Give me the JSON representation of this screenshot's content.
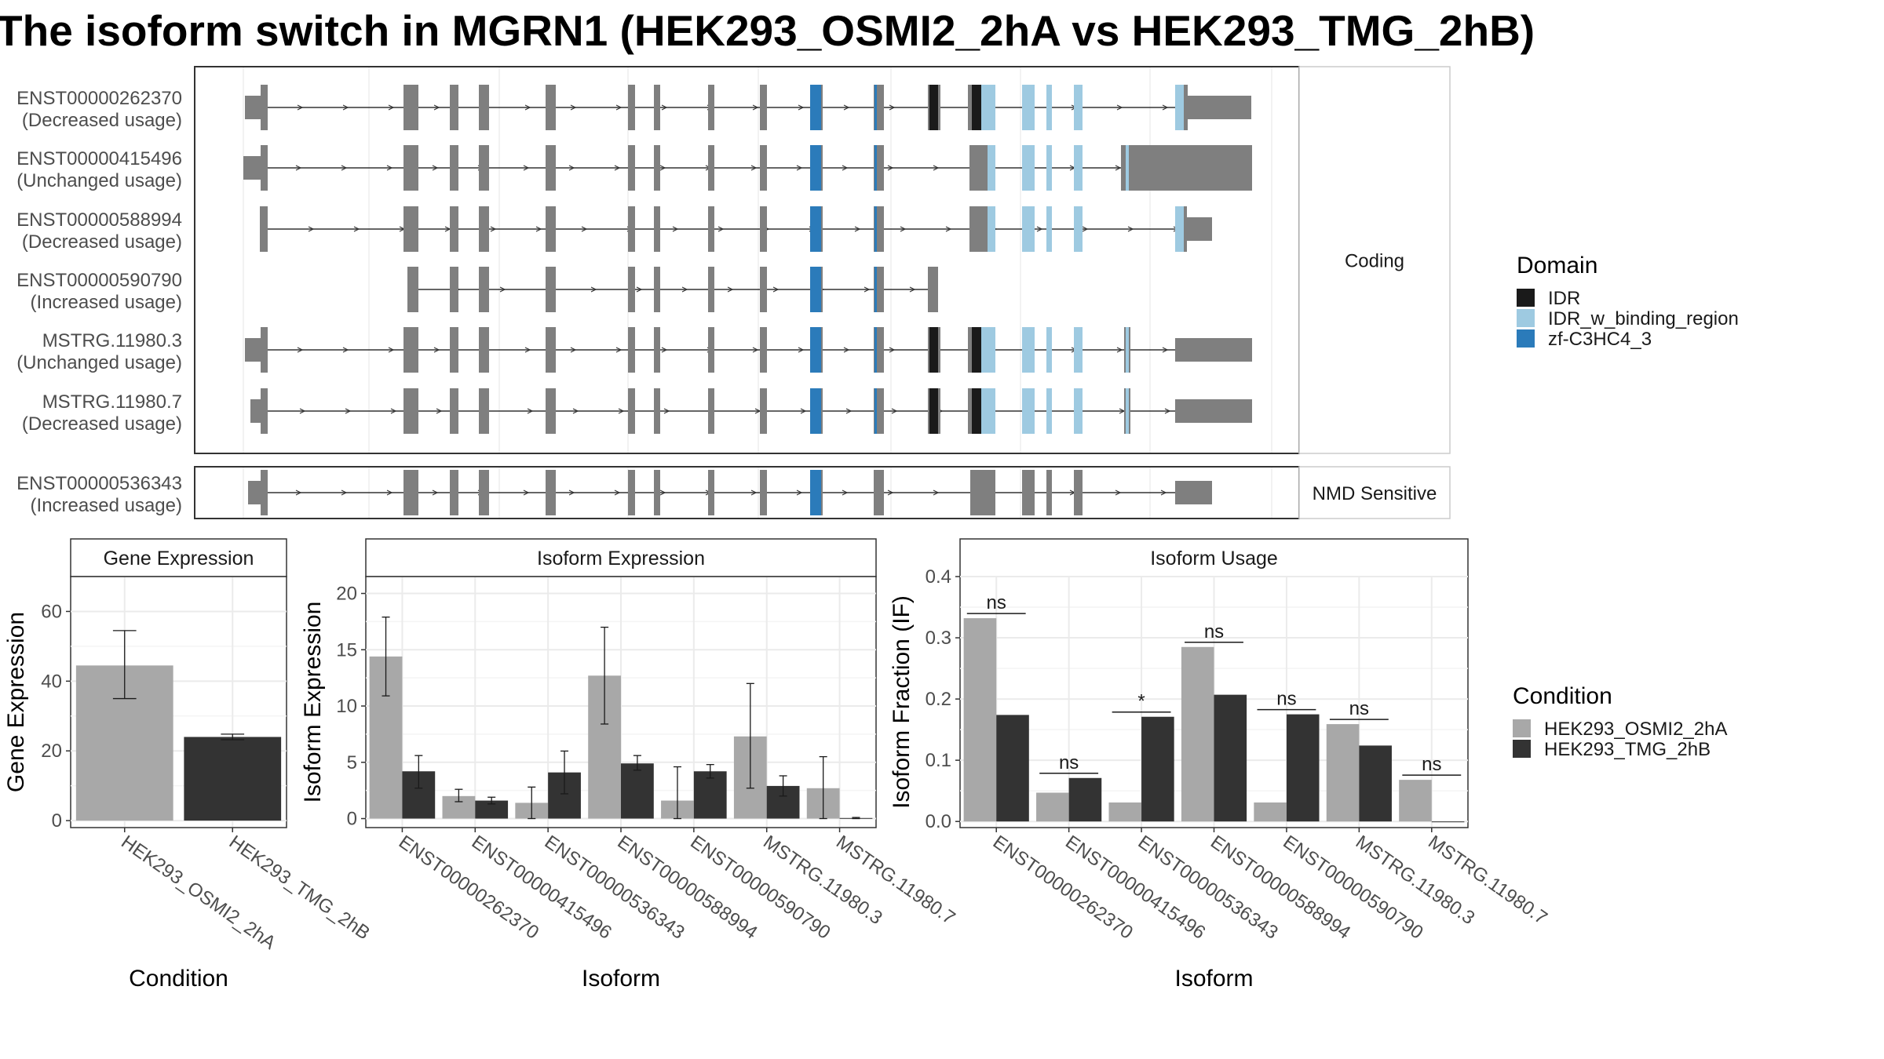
{
  "title": "The isoform switch in MGRN1 (HEK293_OSMI2_2hA vs HEK293_TMG_2hB)",
  "colors": {
    "exon": "#7f7f7f",
    "IDR": "#1a1a1a",
    "IDR_w_binding_region": "#9ecae1",
    "zf-C3HC4_3": "#2b7bba",
    "HEK293_OSMI2_2hA": "#a8a8a8",
    "HEK293_TMG_2hB": "#333333",
    "panel_border": "#333333",
    "strip_bg": "#ffffff",
    "grid": "#ebebeb"
  },
  "structure": {
    "facets": [
      "Coding",
      "NMD Sensitive"
    ],
    "domain_legend": {
      "title": "Domain",
      "items": [
        "IDR",
        "IDR_w_binding_region",
        "zf-C3HC4_3"
      ]
    },
    "transcripts": [
      {
        "id": "ENST00000262370",
        "usage": "(Decreased usage)",
        "facet": "Coding"
      },
      {
        "id": "ENST00000415496",
        "usage": "(Unchanged usage)",
        "facet": "Coding"
      },
      {
        "id": "ENST00000588994",
        "usage": "(Decreased usage)",
        "facet": "Coding"
      },
      {
        "id": "ENST00000590790",
        "usage": "(Increased usage)",
        "facet": "Coding"
      },
      {
        "id": "MSTRG.11980.3",
        "usage": "(Unchanged usage)",
        "facet": "Coding"
      },
      {
        "id": "MSTRG.11980.7",
        "usage": "(Decreased usage)",
        "facet": "Coding"
      },
      {
        "id": "ENST00000536343",
        "usage": "(Increased usage)",
        "facet": "NMD Sensitive"
      }
    ]
  },
  "chart_data": [
    {
      "type": "bar",
      "title": "Gene Expression",
      "xlabel": "Condition",
      "ylabel": "Gene Expression",
      "categories": [
        "HEK293_OSMI2_2hA",
        "HEK293_TMG_2hB"
      ],
      "values": [
        44.5,
        24.0
      ],
      "error_low": [
        35.0,
        23.2
      ],
      "error_high": [
        54.5,
        24.8
      ],
      "ylim": [
        -2,
        70
      ],
      "yticks": [
        0,
        20,
        40,
        60
      ]
    },
    {
      "type": "bar",
      "title": "Isoform Expression",
      "xlabel": "Isoform",
      "ylabel": "Isoform Expression",
      "categories": [
        "ENST00000262370",
        "ENST00000415496",
        "ENST00000536343",
        "ENST00000588994",
        "ENST00000590790",
        "MSTRG.11980.3",
        "MSTRG.11980.7"
      ],
      "series": [
        {
          "name": "HEK293_OSMI2_2hA",
          "values": [
            14.4,
            2.0,
            1.4,
            12.7,
            1.6,
            7.3,
            2.7
          ],
          "error_low": [
            10.9,
            1.5,
            0.0,
            8.4,
            0.0,
            2.7,
            0.0
          ],
          "error_high": [
            17.9,
            2.6,
            2.8,
            17.0,
            4.6,
            12.0,
            5.5
          ]
        },
        {
          "name": "HEK293_TMG_2hB",
          "values": [
            4.2,
            1.6,
            4.1,
            4.9,
            4.2,
            2.9,
            0.05
          ],
          "error_low": [
            2.7,
            1.3,
            2.2,
            4.3,
            3.6,
            2.0,
            0.0
          ],
          "error_high": [
            5.6,
            1.9,
            6.0,
            5.6,
            4.8,
            3.8,
            0.1
          ]
        }
      ],
      "ylim": [
        -0.8,
        21.5
      ],
      "yticks": [
        0,
        5,
        10,
        15,
        20
      ]
    },
    {
      "type": "bar",
      "title": "Isoform Usage",
      "xlabel": "Isoform",
      "ylabel": "Isoform Fraction (IF)",
      "categories": [
        "ENST00000262370",
        "ENST00000415496",
        "ENST00000536343",
        "ENST00000588994",
        "ENST00000590790",
        "MSTRG.11980.3",
        "MSTRG.11980.7"
      ],
      "series": [
        {
          "name": "HEK293_OSMI2_2hA",
          "values": [
            0.332,
            0.047,
            0.031,
            0.285,
            0.031,
            0.159,
            0.068
          ]
        },
        {
          "name": "HEK293_TMG_2hB",
          "values": [
            0.174,
            0.071,
            0.171,
            0.207,
            0.175,
            0.124,
            0.0
          ]
        }
      ],
      "significance": [
        "ns",
        "ns",
        "*",
        "ns",
        "ns",
        "ns",
        "ns"
      ],
      "ylim": [
        -0.01,
        0.4
      ],
      "yticks": [
        0.0,
        0.1,
        0.2,
        0.3,
        0.4
      ],
      "ytick_labels": [
        "0.0",
        "0.1",
        "0.2",
        "0.3",
        "0.4"
      ]
    }
  ],
  "condition_legend": {
    "title": "Condition",
    "items": [
      "HEK293_OSMI2_2hA",
      "HEK293_TMG_2hB"
    ]
  }
}
